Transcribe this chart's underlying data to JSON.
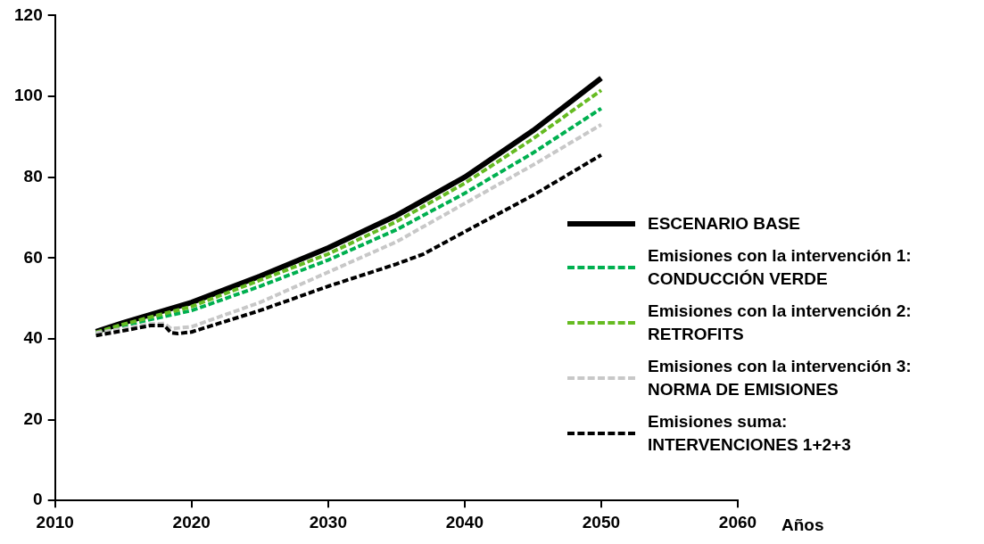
{
  "chart_data": {
    "type": "line",
    "xlabel": "Años",
    "xlim": [
      2010,
      2060
    ],
    "xticks": [
      2010,
      2020,
      2030,
      2040,
      2050,
      2060
    ],
    "ylim": [
      0,
      120
    ],
    "yticks": [
      0,
      20,
      40,
      60,
      80,
      100,
      120
    ],
    "grid": false,
    "legend": "right",
    "marker": "none",
    "series": [
      {
        "name": "ESCENARIO BASE",
        "color": "#000000",
        "line_style": "solid",
        "x": [
          2013,
          2015,
          2020,
          2025,
          2030,
          2035,
          2040,
          2045,
          2050
        ],
        "values": [
          41.8,
          44,
          49,
          55.5,
          62.5,
          70.5,
          80,
          91.5,
          104.5
        ]
      },
      {
        "name": "Emisiones con la intervención 1:\nCONDUCCIÓN VERDE",
        "color": "#00b050",
        "line_style": "dashed",
        "x": [
          2013,
          2015,
          2020,
          2025,
          2030,
          2035,
          2040,
          2045,
          2050
        ],
        "values": [
          41.5,
          43.3,
          47,
          53,
          59.5,
          67,
          76,
          86,
          97
        ]
      },
      {
        "name": "Emisiones con la intervención 2:\nRETROFITS",
        "color": "#66bb22",
        "line_style": "dashed",
        "x": [
          2013,
          2015,
          2020,
          2025,
          2030,
          2035,
          2040,
          2045,
          2050
        ],
        "values": [
          41.6,
          43.6,
          48,
          54.5,
          61,
          69,
          78.5,
          89.5,
          101.5
        ]
      },
      {
        "name": "Emisiones con la intervención 3:\nNORMA DE EMISIONES",
        "color": "#c8c8c8",
        "line_style": "dashed",
        "x": [
          2013,
          2015,
          2017,
          2018,
          2018.5,
          2020,
          2025,
          2030,
          2035,
          2040,
          2045,
          2050
        ],
        "values": [
          41.5,
          42.5,
          43.7,
          43.8,
          42.5,
          43,
          49,
          56.5,
          64,
          73.5,
          83,
          93
        ]
      },
      {
        "name": "Emisiones suma:\nINTERVENCIONES 1+2+3",
        "color": "#000000",
        "line_style": "dashed",
        "x": [
          2013,
          2015,
          2017,
          2018,
          2018.5,
          2019,
          2020,
          2025,
          2030,
          2035,
          2037,
          2040,
          2045,
          2050
        ],
        "values": [
          40.8,
          42,
          43.3,
          43.3,
          41.5,
          41.3,
          41.7,
          47,
          53,
          58.5,
          61,
          66.5,
          75.5,
          85.5
        ]
      }
    ]
  }
}
